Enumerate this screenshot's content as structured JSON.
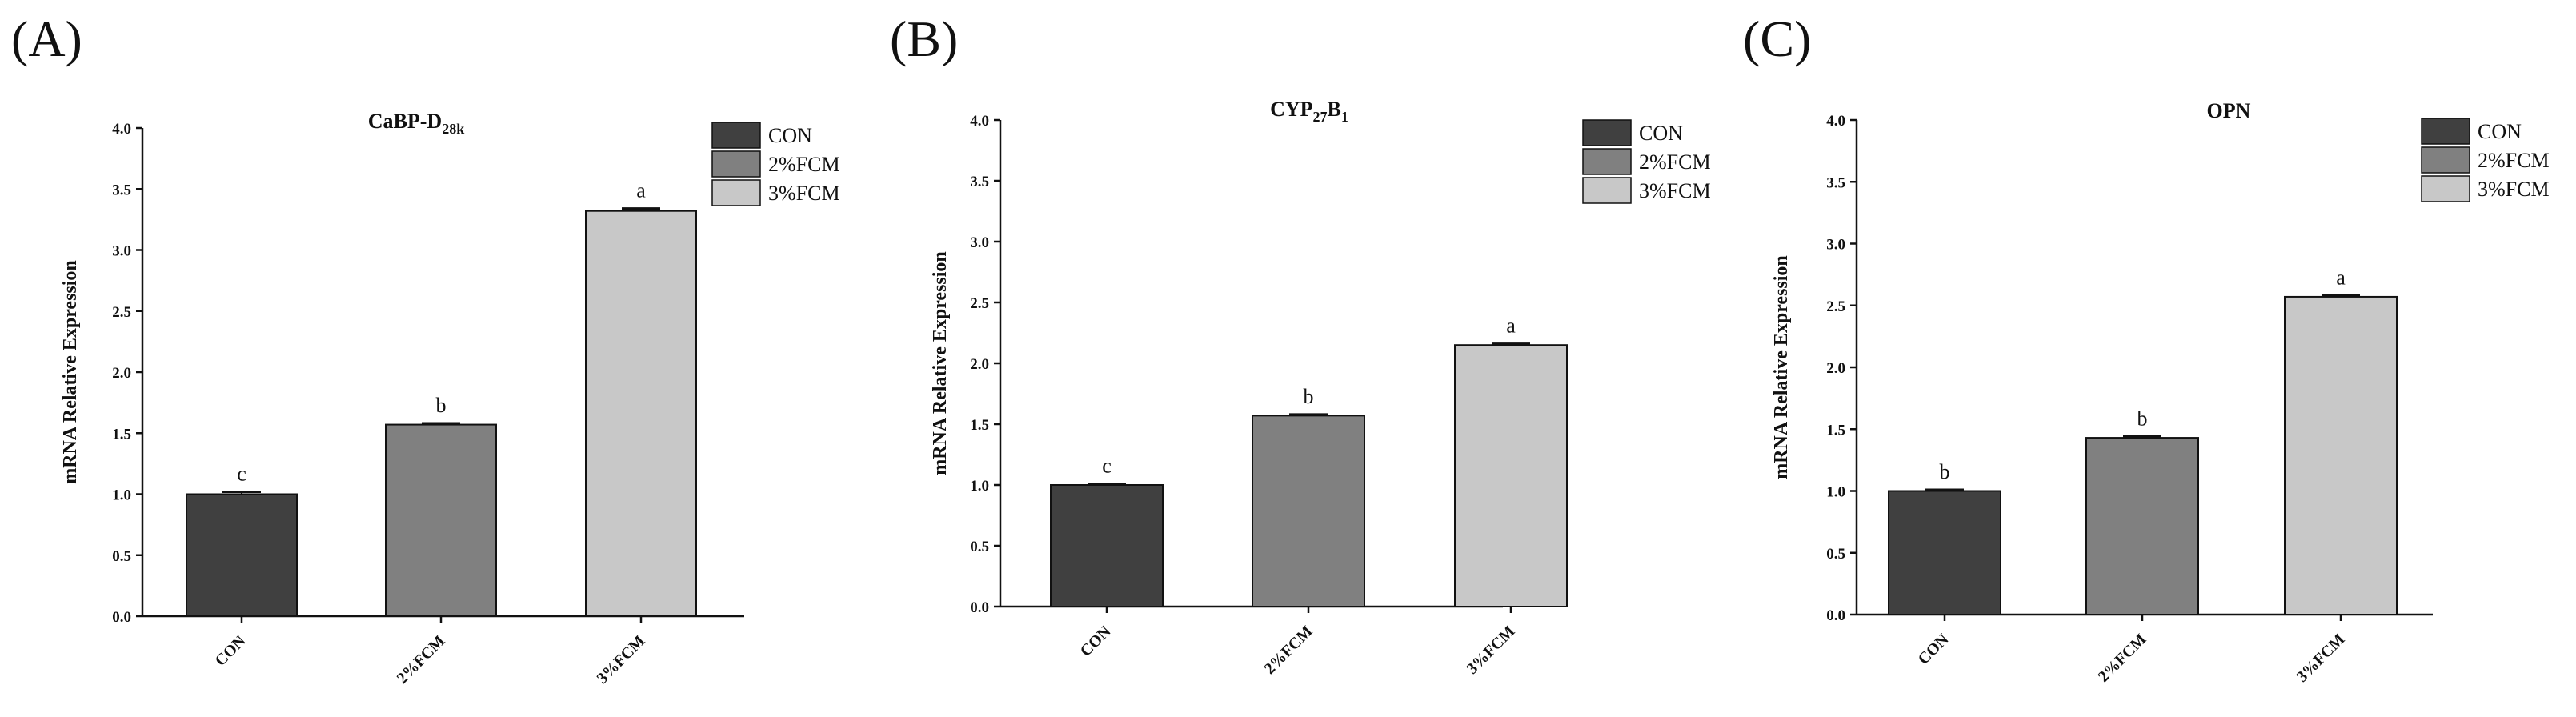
{
  "colors": [
    "#404040",
    "#808080",
    "#c8c8c8"
  ],
  "legend": [
    "CON",
    "2%FCM",
    "3%FCM"
  ],
  "chart_data": [
    {
      "panel": "(A)",
      "type": "bar",
      "title": "CaBP-D",
      "title_sub": "28k",
      "ylabel": "mRNA Relative Expression",
      "ylim": [
        0,
        4.0
      ],
      "yticks": [
        "0.0",
        "0.5",
        "1.0",
        "1.5",
        "2.0",
        "2.5",
        "3.0",
        "3.5",
        "4.0"
      ],
      "categories": [
        "CON",
        "2%FCM",
        "3%FCM"
      ],
      "values": [
        1.0,
        1.57,
        3.32
      ],
      "errors": [
        0.02,
        0.01,
        0.02
      ],
      "significance": [
        "c",
        "b",
        "a"
      ]
    },
    {
      "panel": "(B)",
      "type": "bar",
      "title": "CYP",
      "title_sub": "27",
      "title_mid": "B",
      "title_sub2": "1",
      "ylabel": "mRNA Relative Expression",
      "ylim": [
        0,
        4.0
      ],
      "yticks": [
        "0.0",
        "0.5",
        "1.0",
        "1.5",
        "2.0",
        "2.5",
        "3.0",
        "3.5",
        "4.0"
      ],
      "categories": [
        "CON",
        "2%FCM",
        "3%FCM"
      ],
      "values": [
        1.0,
        1.57,
        2.15
      ],
      "errors": [
        0.01,
        0.01,
        0.01
      ],
      "significance": [
        "c",
        "b",
        "a"
      ]
    },
    {
      "panel": "(C)",
      "type": "bar",
      "title": "OPN",
      "ylabel": "mRNA Relative Expression",
      "ylim": [
        0,
        4.0
      ],
      "yticks": [
        "0.0",
        "0.5",
        "1.0",
        "1.5",
        "2.0",
        "2.5",
        "3.0",
        "3.5",
        "4.0"
      ],
      "categories": [
        "CON",
        "2%FCM",
        "3%FCM"
      ],
      "values": [
        1.0,
        1.43,
        2.57
      ],
      "errors": [
        0.01,
        0.01,
        0.01
      ],
      "significance": [
        "b",
        "b",
        "a"
      ]
    }
  ]
}
